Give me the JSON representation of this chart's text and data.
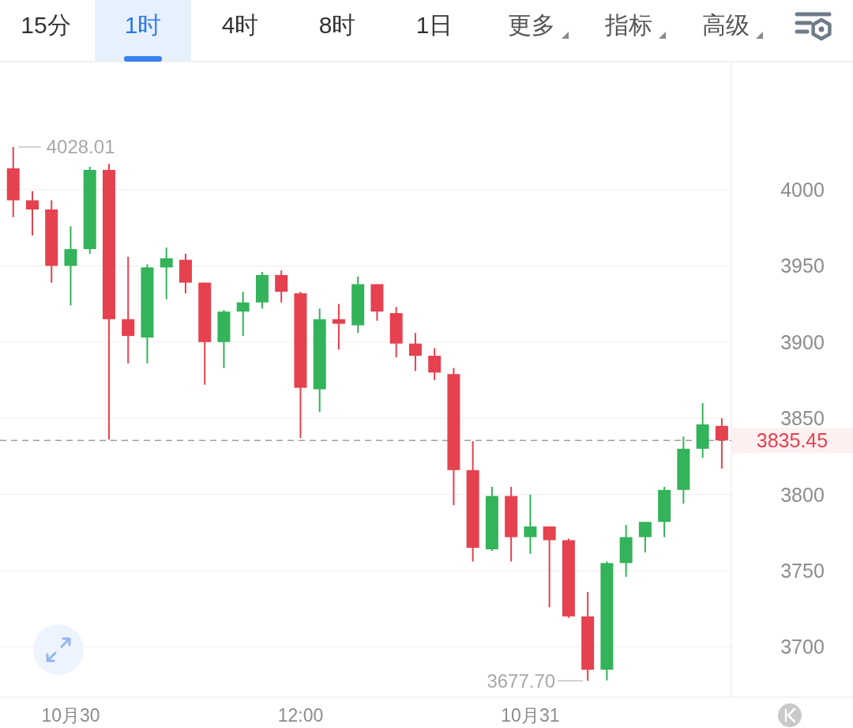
{
  "chart_data": {
    "type": "candlestick",
    "categories": [
      null,
      null,
      null,
      "10月30",
      null,
      null,
      null,
      null,
      null,
      null,
      null,
      null,
      null,
      null,
      null,
      "12:00",
      null,
      null,
      null,
      null,
      null,
      null,
      null,
      null,
      null,
      null,
      null,
      "10月31",
      null,
      null,
      null,
      null,
      null,
      null,
      null,
      null,
      null,
      null
    ],
    "ohlc": [
      [
        4014,
        4028.01,
        3982,
        3993
      ],
      [
        3993,
        3999,
        3970,
        3987
      ],
      [
        3987,
        3993,
        3939,
        3950
      ],
      [
        3950,
        3976,
        3924,
        3961
      ],
      [
        3961,
        4015,
        3958,
        4013
      ],
      [
        4013,
        4017,
        3836,
        3915
      ],
      [
        3915,
        3956,
        3886,
        3904
      ],
      [
        3903,
        3951,
        3886,
        3949
      ],
      [
        3949,
        3962,
        3928,
        3955
      ],
      [
        3954,
        3958,
        3932,
        3939
      ],
      [
        3939,
        3939,
        3872,
        3900
      ],
      [
        3900,
        3921,
        3883,
        3920
      ],
      [
        3920,
        3933,
        3904,
        3926
      ],
      [
        3926,
        3946,
        3922,
        3944
      ],
      [
        3944,
        3947,
        3926,
        3933
      ],
      [
        3932,
        3933,
        3837,
        3870
      ],
      [
        3869,
        3922,
        3854,
        3915
      ],
      [
        3915,
        3925,
        3895,
        3912
      ],
      [
        3911,
        3943,
        3906,
        3938
      ],
      [
        3938,
        3938,
        3914,
        3920
      ],
      [
        3919,
        3923,
        3890,
        3899
      ],
      [
        3899,
        3906,
        3881,
        3891
      ],
      [
        3891,
        3896,
        3875,
        3880
      ],
      [
        3879,
        3883,
        3793,
        3816
      ],
      [
        3816,
        3835,
        3756,
        3765
      ],
      [
        3764,
        3805,
        3763,
        3799
      ],
      [
        3799,
        3805,
        3756,
        3772
      ],
      [
        3772,
        3800,
        3761,
        3779
      ],
      [
        3779,
        3779,
        3726,
        3770
      ],
      [
        3770,
        3771,
        3719,
        3720
      ],
      [
        3720,
        3736,
        3677.7,
        3685
      ],
      [
        3685,
        3756,
        3678,
        3755
      ],
      [
        3755,
        3780,
        3746,
        3772
      ],
      [
        3772,
        3782,
        3762,
        3782
      ],
      [
        3782,
        3805,
        3772,
        3803
      ],
      [
        3803,
        3838,
        3794,
        3830
      ],
      [
        3830,
        3860,
        3824,
        3846
      ],
      [
        3845,
        3850,
        3817,
        3835.45
      ]
    ],
    "colors": [
      "#e5414f",
      "#e5414f",
      "#e5414f",
      "#33b35a",
      "#33b35a",
      "#e5414f",
      "#e5414f",
      "#33b35a",
      "#33b35a",
      "#e5414f",
      "#e5414f",
      "#33b35a",
      "#33b35a",
      "#33b35a",
      "#e5414f",
      "#e5414f",
      "#33b35a",
      "#e5414f",
      "#33b35a",
      "#e5414f",
      "#e5414f",
      "#e5414f",
      "#e5414f",
      "#e5414f",
      "#e5414f",
      "#33b35a",
      "#e5414f",
      "#33b35a",
      "#e5414f",
      "#e5414f",
      "#e5414f",
      "#33b35a",
      "#33b35a",
      "#33b35a",
      "#33b35a",
      "#33b35a",
      "#33b35a",
      "#e5414f"
    ],
    "ylim": [
      3667,
      4084
    ],
    "yticks": [
      3700,
      3750,
      3800,
      3850,
      3900,
      3950,
      4000
    ],
    "grid": "y",
    "ref_lines": [
      {
        "axis": "y",
        "value": 3835.45,
        "label": "3835.45",
        "color": "#a0a0a0",
        "line_style": "dashed"
      }
    ],
    "annotations": [
      "15分",
      "1时",
      "4时",
      "8时",
      "1日",
      "更多",
      "指标",
      "高级",
      "4028.01",
      "3677.70"
    ]
  }
}
